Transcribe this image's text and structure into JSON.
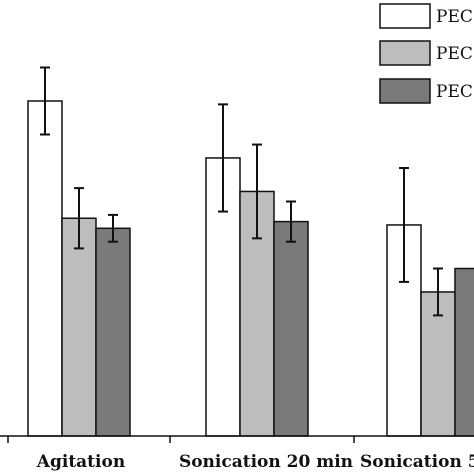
{
  "chart_data": {
    "type": "bar",
    "categories": [
      "Agitation",
      "Sonication 20 min",
      "Sonication 5"
    ],
    "series": [
      {
        "name": "PEC",
        "values": [
          100,
          83,
          63
        ],
        "errors": [
          10,
          16,
          17
        ],
        "color": "#ffffff"
      },
      {
        "name": "PEC",
        "values": [
          65,
          73,
          43
        ],
        "errors": [
          9,
          14,
          7
        ],
        "color": "#bdbdbd"
      },
      {
        "name": "PEC",
        "values": [
          62,
          64,
          50
        ],
        "errors": [
          4,
          6,
          null
        ],
        "color": "#7a7a7a"
      }
    ],
    "ylim": [
      0,
      120
    ],
    "legend_position": "top-right",
    "grid": false,
    "error_bars": true
  }
}
